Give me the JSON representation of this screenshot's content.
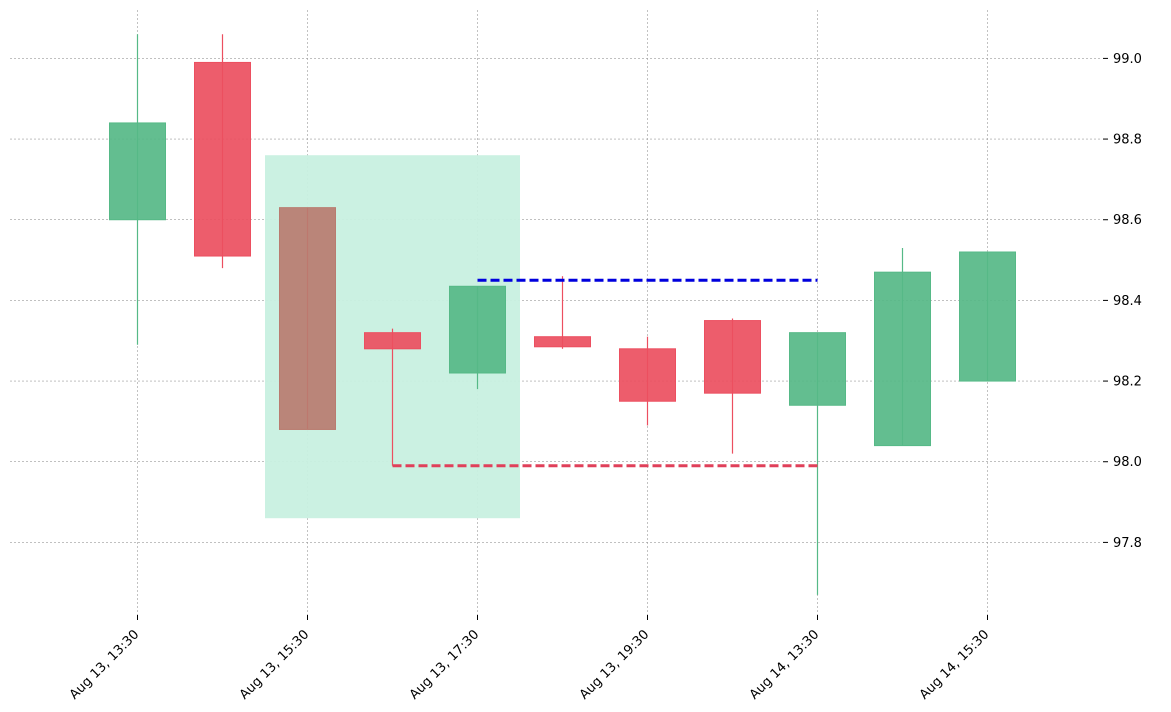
{
  "chart_data": {
    "type": "candlestick",
    "title": "",
    "xlabel": "",
    "ylabel": "",
    "ylim": [
      97.62,
      99.12
    ],
    "y_ticks": [
      97.8,
      98.0,
      98.2,
      98.4,
      98.6,
      98.8,
      99.0
    ],
    "y_tick_labels": [
      "97.8",
      "98.0",
      "98.2",
      "98.4",
      "98.6",
      "98.8",
      "99.0"
    ],
    "x_tick_labels": [
      "Aug 13, 13:30",
      "Aug 13, 15:30",
      "Aug 13, 17:30",
      "Aug 13, 19:30",
      "Aug 14, 13:30",
      "Aug 14, 15:30"
    ],
    "x_tick_candle_index": [
      0,
      2,
      4,
      6,
      8,
      10
    ],
    "grid": true,
    "candles": [
      {
        "open": 98.6,
        "high": 99.06,
        "low": 98.29,
        "close": 98.84
      },
      {
        "open": 98.99,
        "high": 99.06,
        "low": 98.48,
        "close": 98.51
      },
      {
        "open": 98.63,
        "high": 98.63,
        "low": 98.08,
        "close": 98.08
      },
      {
        "open": 98.32,
        "high": 98.33,
        "low": 97.99,
        "close": 98.28
      },
      {
        "open": 98.22,
        "high": 98.435,
        "low": 98.18,
        "close": 98.435
      },
      {
        "open": 98.31,
        "high": 98.46,
        "low": 98.28,
        "close": 98.285
      },
      {
        "open": 98.28,
        "high": 98.31,
        "low": 98.09,
        "close": 98.15
      },
      {
        "open": 98.35,
        "high": 98.355,
        "low": 98.02,
        "close": 98.17
      },
      {
        "open": 98.14,
        "high": 98.32,
        "low": 97.67,
        "close": 98.32
      },
      {
        "open": 98.04,
        "high": 98.53,
        "low": 98.04,
        "close": 98.47
      },
      {
        "open": 98.2,
        "high": 98.52,
        "low": 98.2,
        "close": 98.52
      }
    ],
    "highlight_zone": {
      "from_index": 1.5,
      "to_index": 4.5,
      "low": 97.86,
      "high": 98.76,
      "color": "#c8f0e0"
    },
    "highlighted_candle": {
      "index": 2,
      "color": "#b97c70"
    },
    "levels": [
      {
        "name": "resistance",
        "value": 98.45,
        "from_index": 4,
        "to_index": 8,
        "color": "#0000dd"
      },
      {
        "name": "support",
        "value": 97.99,
        "from_index": 3,
        "to_index": 8,
        "color": "#e0405a"
      }
    ],
    "colors": {
      "up": "#56b987",
      "down": "#ec4f60",
      "grid": "#9a9a9a"
    }
  }
}
